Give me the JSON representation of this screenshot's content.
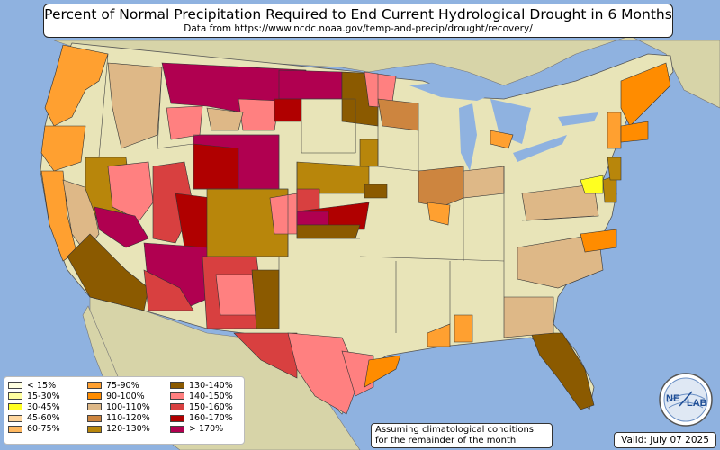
{
  "title": "Percent of Normal Precipitation Required to End Current Hydrological Drought in 6 Months",
  "subtitle": "Data from https://www.ncdc.noaa.gov/temp-and-precip/drought/recovery/",
  "note_line1": "Assuming climatological conditions",
  "note_line2": "for the remainder of the month",
  "valid": "Valid: July 07 2025",
  "logo_text_left": "NE",
  "logo_text_right": "LAB",
  "colors": {
    "ocean": "#8fb2e0",
    "land_base": "#e8e4b8",
    "foreign_land": "#d8d6ad",
    "lakes": "#8fb2e0"
  },
  "legend": [
    {
      "label": "< 15%",
      "color": "#ffffe0"
    },
    {
      "label": "15-30%",
      "color": "#ffffa0"
    },
    {
      "label": "30-45%",
      "color": "#ffff20"
    },
    {
      "label": "45-60%",
      "color": "#ffd8a0"
    },
    {
      "label": "60-75%",
      "color": "#ffb860"
    },
    {
      "label": "75-90%",
      "color": "#ffa030"
    },
    {
      "label": "90-100%",
      "color": "#ff8c00"
    },
    {
      "label": "100-110%",
      "color": "#deb887"
    },
    {
      "label": "110-120%",
      "color": "#cd853f"
    },
    {
      "label": "120-130%",
      "color": "#b8860b"
    },
    {
      "label": "130-140%",
      "color": "#8b5a00"
    },
    {
      "label": "140-150%",
      "color": "#ff8080"
    },
    {
      "label": "150-160%",
      "color": "#d84040"
    },
    {
      "label": "160-170%",
      "color": "#b00000"
    },
    {
      "label": "> 170%",
      "color": "#b00050"
    }
  ]
}
